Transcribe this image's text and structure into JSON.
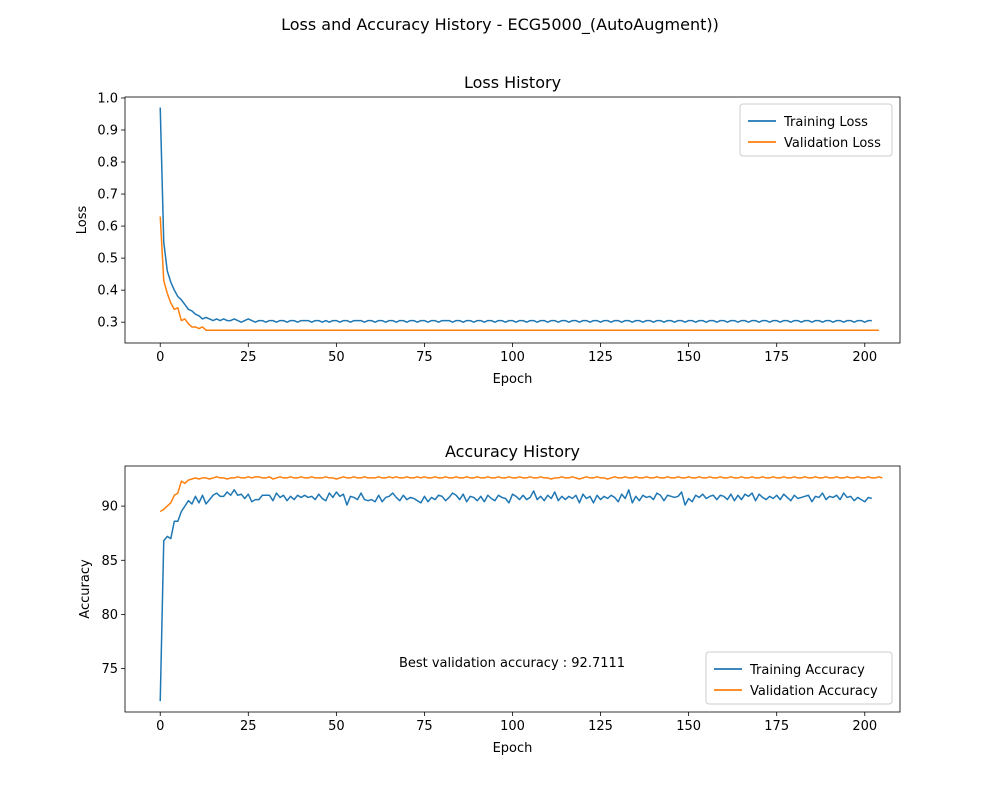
{
  "figure": {
    "suptitle": "Loss and Accuracy History - ECG5000_(AutoAugment))"
  },
  "chart_data": [
    {
      "type": "line",
      "title": "Loss History",
      "xlabel": "Epoch",
      "ylabel": "Loss",
      "xlim": [
        -10,
        210
      ],
      "ylim": [
        0.235,
        1.003
      ],
      "xticks": [
        0,
        25,
        50,
        75,
        100,
        125,
        150,
        175,
        200
      ],
      "yticks": [
        0.3,
        0.4,
        0.5,
        0.6,
        0.7,
        0.8,
        0.9,
        1.0
      ],
      "ytick_labels": [
        "0.3",
        "0.4",
        "0.5",
        "0.6",
        "0.7",
        "0.8",
        "0.9",
        "1.0"
      ],
      "grid": false,
      "legend_position": "top-right",
      "series": [
        {
          "name": "Training Loss",
          "color": "#1f77b4",
          "values": [
            0.97,
            0.55,
            0.46,
            0.425,
            0.4,
            0.38,
            0.37,
            0.355,
            0.34,
            0.335,
            0.325,
            0.32,
            0.31,
            0.315,
            0.31,
            0.305,
            0.31,
            0.305,
            0.31,
            0.305,
            0.305,
            0.31,
            0.305,
            0.3,
            0.305,
            0.31,
            0.305,
            0.3,
            0.305,
            0.305,
            0.3,
            0.305,
            0.305,
            0.3,
            0.305,
            0.305,
            0.3,
            0.305,
            0.305,
            0.3,
            0.305,
            0.305,
            0.305,
            0.3,
            0.305,
            0.305,
            0.3,
            0.305,
            0.3,
            0.305,
            0.305,
            0.3,
            0.305,
            0.305,
            0.3,
            0.305,
            0.305,
            0.305,
            0.3,
            0.305,
            0.305,
            0.3,
            0.305,
            0.305,
            0.3,
            0.305,
            0.305,
            0.3,
            0.305,
            0.305,
            0.3,
            0.305,
            0.305,
            0.3,
            0.305,
            0.305,
            0.3,
            0.305,
            0.305,
            0.3,
            0.305,
            0.305,
            0.305,
            0.3,
            0.305,
            0.305,
            0.3,
            0.305,
            0.305,
            0.3,
            0.305,
            0.305,
            0.3,
            0.305,
            0.305,
            0.3,
            0.305,
            0.305,
            0.3,
            0.305,
            0.305,
            0.3,
            0.305,
            0.305,
            0.3,
            0.305,
            0.305,
            0.3,
            0.305,
            0.305,
            0.3,
            0.305,
            0.305,
            0.3,
            0.305,
            0.305,
            0.3,
            0.305,
            0.305,
            0.3,
            0.305,
            0.305,
            0.3,
            0.305,
            0.305,
            0.3,
            0.305,
            0.305,
            0.3,
            0.305,
            0.305,
            0.3,
            0.305,
            0.305,
            0.3,
            0.305,
            0.305,
            0.3,
            0.305,
            0.305,
            0.3,
            0.305,
            0.305,
            0.3,
            0.305,
            0.305,
            0.3,
            0.305,
            0.305,
            0.3,
            0.305,
            0.305,
            0.3,
            0.305,
            0.305,
            0.3,
            0.305,
            0.305,
            0.3,
            0.305,
            0.305,
            0.3,
            0.305,
            0.305,
            0.3,
            0.305,
            0.305,
            0.3,
            0.305,
            0.305,
            0.3,
            0.305,
            0.305,
            0.3,
            0.305,
            0.305,
            0.3,
            0.305,
            0.305,
            0.3,
            0.305,
            0.305,
            0.3,
            0.305,
            0.305,
            0.3,
            0.305,
            0.305,
            0.3,
            0.305,
            0.305,
            0.3,
            0.305,
            0.305,
            0.3,
            0.305,
            0.305,
            0.3,
            0.305,
            0.305,
            0.3,
            0.305,
            0.305
          ]
        },
        {
          "name": "Validation Loss",
          "color": "#ff7f0e",
          "values": [
            0.63,
            0.43,
            0.39,
            0.36,
            0.34,
            0.345,
            0.305,
            0.31,
            0.295,
            0.285,
            0.285,
            0.28,
            0.285,
            0.275,
            0.275,
            0.275,
            0.275,
            0.275,
            0.275,
            0.275,
            0.275,
            0.275,
            0.275,
            0.275,
            0.275,
            0.275,
            0.275,
            0.275,
            0.275,
            0.275,
            0.275,
            0.275,
            0.275,
            0.275,
            0.275,
            0.275,
            0.275,
            0.275,
            0.275,
            0.275,
            0.275,
            0.275,
            0.275,
            0.275,
            0.275,
            0.275,
            0.275,
            0.275,
            0.275,
            0.275,
            0.275,
            0.275,
            0.275,
            0.275,
            0.275,
            0.275,
            0.275,
            0.275,
            0.275,
            0.275,
            0.275,
            0.275,
            0.275,
            0.275,
            0.275,
            0.275,
            0.275,
            0.275,
            0.275,
            0.275,
            0.275,
            0.275,
            0.275,
            0.275,
            0.275,
            0.275,
            0.275,
            0.275,
            0.275,
            0.275,
            0.275,
            0.275,
            0.275,
            0.275,
            0.275,
            0.275,
            0.275,
            0.275,
            0.275,
            0.275,
            0.275,
            0.275,
            0.275,
            0.275,
            0.275,
            0.275,
            0.275,
            0.275,
            0.275,
            0.275,
            0.275,
            0.275,
            0.275,
            0.275,
            0.275,
            0.275,
            0.275,
            0.275,
            0.275,
            0.275,
            0.275,
            0.275,
            0.275,
            0.275,
            0.275,
            0.275,
            0.275,
            0.275,
            0.275,
            0.275,
            0.275,
            0.275,
            0.275,
            0.275,
            0.275,
            0.275,
            0.275,
            0.275,
            0.275,
            0.275,
            0.275,
            0.275,
            0.275,
            0.275,
            0.275,
            0.275,
            0.275,
            0.275,
            0.275,
            0.275,
            0.275,
            0.275,
            0.275,
            0.275,
            0.275,
            0.275,
            0.275,
            0.275,
            0.275,
            0.275,
            0.275,
            0.275,
            0.275,
            0.275,
            0.275,
            0.275,
            0.275,
            0.275,
            0.275,
            0.275,
            0.275,
            0.275,
            0.275,
            0.275,
            0.275,
            0.275,
            0.275,
            0.275,
            0.275,
            0.275,
            0.275,
            0.275,
            0.275,
            0.275,
            0.275,
            0.275,
            0.275,
            0.275,
            0.275,
            0.275,
            0.275,
            0.275,
            0.275,
            0.275,
            0.275,
            0.275,
            0.275,
            0.275,
            0.275,
            0.275,
            0.275,
            0.275,
            0.275,
            0.275,
            0.275,
            0.275,
            0.275,
            0.275,
            0.275,
            0.275,
            0.275,
            0.275,
            0.275,
            0.275,
            0.275
          ]
        }
      ]
    },
    {
      "type": "line",
      "title": "Accuracy History",
      "xlabel": "Epoch",
      "ylabel": "Accuracy",
      "xlim": [
        -10,
        210
      ],
      "ylim": [
        71.0,
        93.7
      ],
      "xticks": [
        0,
        25,
        50,
        75,
        100,
        125,
        150,
        175,
        200
      ],
      "yticks": [
        75,
        80,
        85,
        90
      ],
      "ytick_labels": [
        "75",
        "80",
        "85",
        "90"
      ],
      "grid": false,
      "legend_position": "bottom-right",
      "annotation": "Best validation accuracy : 92.7111",
      "series": [
        {
          "name": "Training Accuracy",
          "color": "#1f77b4",
          "values": [
            72.0,
            86.8,
            87.2,
            87.0,
            88.6,
            88.6,
            89.5,
            90.0,
            90.5,
            90.2,
            90.9,
            90.3,
            91.0,
            90.2,
            90.6,
            91.0,
            91.2,
            90.9,
            90.9,
            91.3,
            91.0,
            91.5,
            91.0,
            91.1,
            90.7,
            91.1,
            90.4,
            90.6,
            90.6,
            91.0,
            91.0,
            91.0,
            90.5,
            91.2,
            90.8,
            91.0,
            90.5,
            90.9,
            90.6,
            91.0,
            90.8,
            91.0,
            90.8,
            90.9,
            90.6,
            91.1,
            90.7,
            90.5,
            91.2,
            90.8,
            91.3,
            90.9,
            91.1,
            90.1,
            90.9,
            90.8,
            90.6,
            91.2,
            90.6,
            90.5,
            90.6,
            90.4,
            91.0,
            90.4,
            90.8,
            90.9,
            91.2,
            90.8,
            90.5,
            91.0,
            90.6,
            90.8,
            90.7,
            90.5,
            90.3,
            90.9,
            90.4,
            90.8,
            90.6,
            91.0,
            90.9,
            90.5,
            90.8,
            91.2,
            91.0,
            90.6,
            91.1,
            90.4,
            90.9,
            90.8,
            90.5,
            90.9,
            90.4,
            91.0,
            90.7,
            90.5,
            91.0,
            90.8,
            90.7,
            90.3,
            91.1,
            90.9,
            90.6,
            91.0,
            90.6,
            90.8,
            91.4,
            90.6,
            90.9,
            90.5,
            91.0,
            90.7,
            91.3,
            90.5,
            90.9,
            90.6,
            90.9,
            90.7,
            91.0,
            90.3,
            91.1,
            90.7,
            90.9,
            90.3,
            91.0,
            90.6,
            90.9,
            90.7,
            91.0,
            90.8,
            90.4,
            91.1,
            90.7,
            91.5,
            90.3,
            90.9,
            90.5,
            91.0,
            90.8,
            90.9,
            90.6,
            91.2,
            91.0,
            90.5,
            91.0,
            90.9,
            90.8,
            90.9,
            91.3,
            90.1,
            90.7,
            90.4,
            91.0,
            90.8,
            91.1,
            90.7,
            90.9,
            91.0,
            90.6,
            91.0,
            90.9,
            90.6,
            91.1,
            90.5,
            91.0,
            90.6,
            91.1,
            90.9,
            91.2,
            90.5,
            91.1,
            90.8,
            90.6,
            90.9,
            90.7,
            91.0,
            90.6,
            91.1,
            90.8,
            90.5,
            91.0,
            90.7,
            90.8,
            90.9,
            91.0,
            90.4,
            90.9,
            90.8,
            91.2,
            90.6,
            90.9,
            90.8,
            91.0,
            90.6,
            91.2,
            90.8,
            90.9,
            90.5,
            90.8,
            90.6,
            90.4,
            90.8,
            90.7
          ]
        },
        {
          "name": "Validation Accuracy",
          "color": "#ff7f0e",
          "values": [
            89.5,
            89.7,
            90.0,
            90.3,
            91.0,
            91.2,
            92.3,
            92.1,
            92.4,
            92.5,
            92.6,
            92.5,
            92.6,
            92.6,
            92.5,
            92.6,
            92.7,
            92.6,
            92.6,
            92.5,
            92.6,
            92.6,
            92.7,
            92.6,
            92.6,
            92.7,
            92.6,
            92.7,
            92.7,
            92.6,
            92.6,
            92.7,
            92.5,
            92.6,
            92.7,
            92.6,
            92.6,
            92.7,
            92.6,
            92.6,
            92.7,
            92.6,
            92.6,
            92.7,
            92.6,
            92.6,
            92.6,
            92.7,
            92.6,
            92.6,
            92.5,
            92.6,
            92.7,
            92.6,
            92.6,
            92.7,
            92.6,
            92.6,
            92.7,
            92.6,
            92.6,
            92.6,
            92.7,
            92.6,
            92.6,
            92.7,
            92.6,
            92.7,
            92.6,
            92.6,
            92.7,
            92.6,
            92.6,
            92.7,
            92.6,
            92.7,
            92.6,
            92.6,
            92.7,
            92.6,
            92.6,
            92.7,
            92.6,
            92.6,
            92.7,
            92.6,
            92.6,
            92.7,
            92.6,
            92.6,
            92.7,
            92.6,
            92.6,
            92.7,
            92.6,
            92.6,
            92.7,
            92.6,
            92.6,
            92.7,
            92.6,
            92.6,
            92.7,
            92.6,
            92.6,
            92.7,
            92.6,
            92.6,
            92.7,
            92.6,
            92.6,
            92.5,
            92.6,
            92.6,
            92.7,
            92.6,
            92.6,
            92.7,
            92.6,
            92.5,
            92.6,
            92.7,
            92.6,
            92.6,
            92.7,
            92.6,
            92.6,
            92.5,
            92.6,
            92.7,
            92.6,
            92.6,
            92.7,
            92.6,
            92.6,
            92.7,
            92.6,
            92.6,
            92.7,
            92.6,
            92.6,
            92.7,
            92.6,
            92.6,
            92.7,
            92.6,
            92.6,
            92.7,
            92.6,
            92.6,
            92.7,
            92.6,
            92.6,
            92.7,
            92.6,
            92.6,
            92.7,
            92.6,
            92.6,
            92.7,
            92.6,
            92.6,
            92.7,
            92.6,
            92.6,
            92.7,
            92.6,
            92.6,
            92.7,
            92.6,
            92.6,
            92.7,
            92.6,
            92.6,
            92.7,
            92.6,
            92.6,
            92.7,
            92.6,
            92.6,
            92.7,
            92.6,
            92.6,
            92.7,
            92.6,
            92.6,
            92.7,
            92.6,
            92.6,
            92.7,
            92.6,
            92.6,
            92.7,
            92.6,
            92.6,
            92.7,
            92.6,
            92.6,
            92.7,
            92.6,
            92.6,
            92.7,
            92.6,
            92.6,
            92.7,
            92.6
          ]
        }
      ]
    }
  ]
}
